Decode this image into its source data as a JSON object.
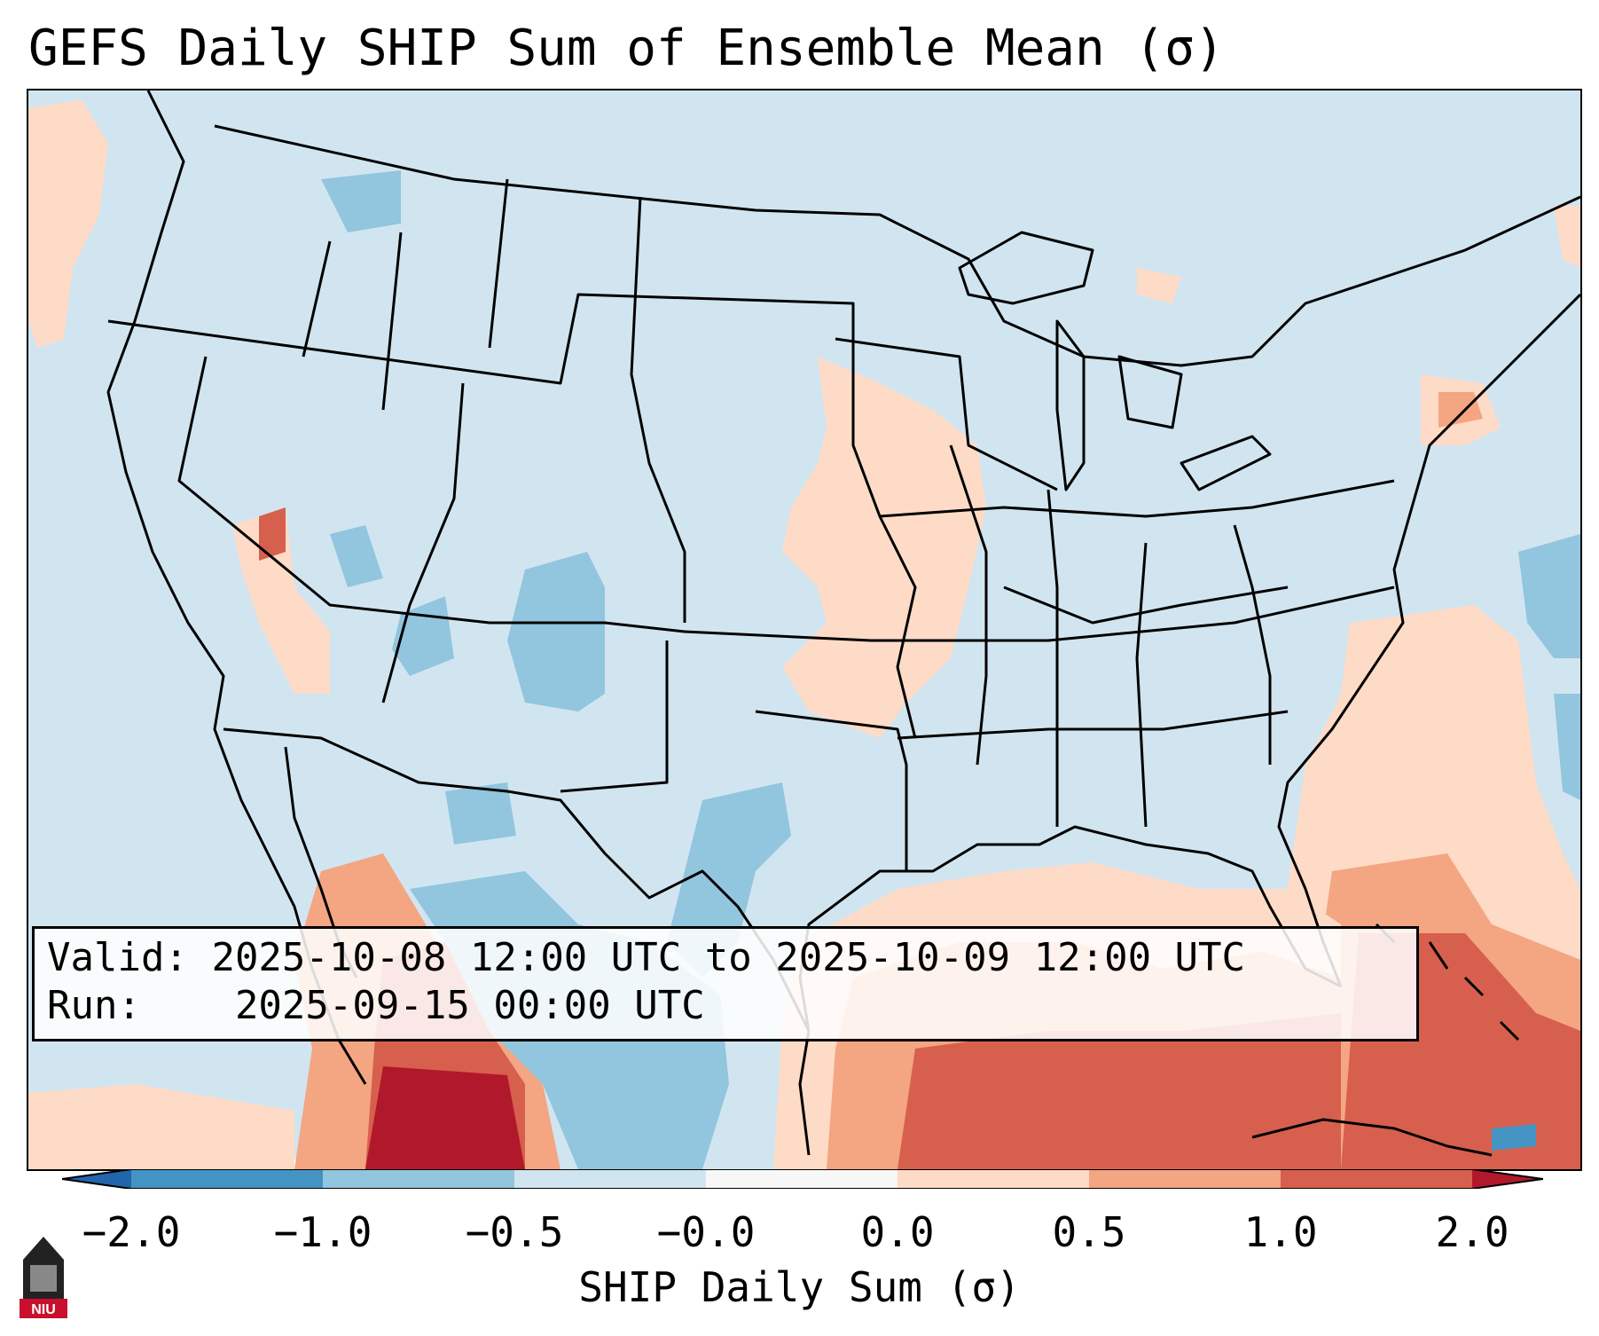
{
  "title": "GEFS Daily SHIP Sum of Ensemble Mean (σ)",
  "map": {
    "region": "Contiguous United States",
    "background_value_color": "#d1e5f0",
    "anomaly_areas": [
      {
        "area": "Gulf of Mexico and Florida",
        "category": "1.0 to 2.0"
      },
      {
        "area": "Western Mexico coast",
        "category": "1.0 to 2.0"
      },
      {
        "area": "Atlantic east of Southeast US",
        "category": "0.5 to 1.0"
      },
      {
        "area": "Iowa, Missouri, Illinois",
        "category": "0.0 to 0.5"
      },
      {
        "area": "Southern New England",
        "category": "0.5 to 1.0"
      },
      {
        "area": "Colorado and Utah",
        "category": "-1.0 to -0.5"
      },
      {
        "area": "Northern Mexico and west Texas",
        "category": "-1.0 to -0.5"
      },
      {
        "area": "Western Atlantic offshore",
        "category": "-1.0 to -0.5"
      }
    ]
  },
  "info": {
    "valid_label": "Valid:",
    "valid_value": "2025-10-08 12:00 UTC to 2025-10-09 12:00 UTC",
    "run_label": "Run:",
    "run_value": "2025-09-15 00:00 UTC"
  },
  "colorbar": {
    "label": "SHIP Daily Sum (σ)",
    "ticks": [
      "−2.0",
      "−1.0",
      "−0.5",
      "−0.0",
      "0.0",
      "0.5",
      "1.0",
      "2.0"
    ],
    "colors": {
      "lt_-2": "#2166ac",
      "-2_-1": "#4393c3",
      "-1_-0.5": "#92c5de",
      "-0.5_0": "#d1e5f0",
      "0_band": "#f7f7f7",
      "0_0.5": "#fddbc7",
      "0.5_1": "#f4a582",
      "1_2": "#d6604d",
      "gt_2": "#b2182b"
    }
  },
  "logo": {
    "text": "NIU",
    "icon": "university-building-icon"
  }
}
